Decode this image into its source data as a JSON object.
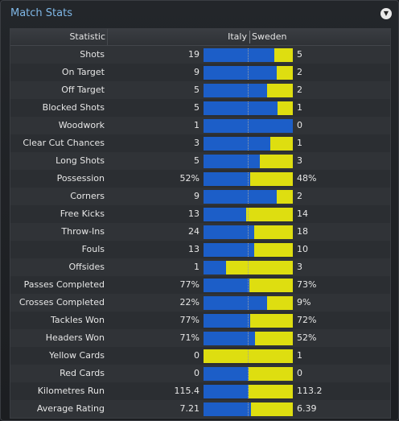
{
  "panel": {
    "title": "Match Stats"
  },
  "columns": {
    "stat": "Statistic",
    "home": "Italy",
    "away": "Sweden"
  },
  "colors": {
    "home_bar": "#1c5ec8",
    "away_bar": "#dede10",
    "title": "#7fb7e6"
  },
  "icons": {
    "menu": "chevron-down-icon"
  },
  "rows": [
    {
      "label": "Shots",
      "home": "19",
      "away": "5",
      "home_share": 0.79
    },
    {
      "label": "On Target",
      "home": "9",
      "away": "2",
      "home_share": 0.82
    },
    {
      "label": "Off Target",
      "home": "5",
      "away": "2",
      "home_share": 0.71
    },
    {
      "label": "Blocked Shots",
      "home": "5",
      "away": "1",
      "home_share": 0.83
    },
    {
      "label": "Woodwork",
      "home": "1",
      "away": "0",
      "home_share": 1.0
    },
    {
      "label": "Clear Cut Chances",
      "home": "3",
      "away": "1",
      "home_share": 0.75
    },
    {
      "label": "Long Shots",
      "home": "5",
      "away": "3",
      "home_share": 0.63
    },
    {
      "label": "Possession",
      "home": "52%",
      "away": "48%",
      "home_share": 0.52
    },
    {
      "label": "Corners",
      "home": "9",
      "away": "2",
      "home_share": 0.82
    },
    {
      "label": "Free Kicks",
      "home": "13",
      "away": "14",
      "home_share": 0.48
    },
    {
      "label": "Throw-Ins",
      "home": "24",
      "away": "18",
      "home_share": 0.57
    },
    {
      "label": "Fouls",
      "home": "13",
      "away": "10",
      "home_share": 0.57
    },
    {
      "label": "Offsides",
      "home": "1",
      "away": "3",
      "home_share": 0.25
    },
    {
      "label": "Passes Completed",
      "home": "77%",
      "away": "73%",
      "home_share": 0.51
    },
    {
      "label": "Crosses Completed",
      "home": "22%",
      "away": "9%",
      "home_share": 0.71
    },
    {
      "label": "Tackles Won",
      "home": "77%",
      "away": "72%",
      "home_share": 0.52
    },
    {
      "label": "Headers Won",
      "home": "71%",
      "away": "52%",
      "home_share": 0.58
    },
    {
      "label": "Yellow Cards",
      "home": "0",
      "away": "1",
      "home_share": 0.0
    },
    {
      "label": "Red Cards",
      "home": "0",
      "away": "0",
      "home_share": 0.5
    },
    {
      "label": "Kilometres Run",
      "home": "115.4",
      "away": "113.2",
      "home_share": 0.5
    },
    {
      "label": "Average Rating",
      "home": "7.21",
      "away": "6.39",
      "home_share": 0.53
    }
  ]
}
